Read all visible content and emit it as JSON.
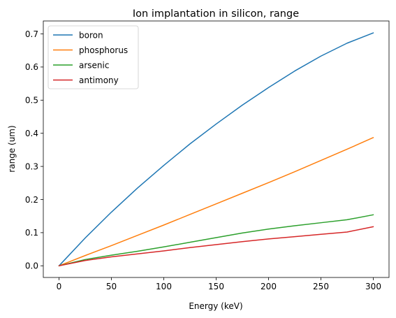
{
  "chart_data": {
    "type": "line",
    "title": "Ion implantation in silicon, range",
    "xlabel": "Energy (keV)",
    "ylabel": "range (um)",
    "xlim": [
      -15,
      315
    ],
    "ylim": [
      -0.0352,
      0.739
    ],
    "xticks": [
      0,
      50,
      100,
      150,
      200,
      250,
      300
    ],
    "xtick_labels": [
      "0",
      "50",
      "100",
      "150",
      "200",
      "250",
      "300"
    ],
    "yticks": [
      0.0,
      0.1,
      0.2,
      0.3,
      0.4,
      0.5,
      0.6,
      0.7
    ],
    "ytick_labels": [
      "0.0",
      "0.1",
      "0.2",
      "0.3",
      "0.4",
      "0.5",
      "0.6",
      "0.7"
    ],
    "grid": false,
    "legend_position": "top-left",
    "x": [
      0,
      25,
      50,
      75,
      100,
      125,
      150,
      175,
      200,
      225,
      250,
      275,
      300
    ],
    "series": [
      {
        "name": "boron",
        "color": "#1f77b4",
        "values": [
          0.0,
          0.084,
          0.162,
          0.235,
          0.303,
          0.368,
          0.428,
          0.485,
          0.538,
          0.588,
          0.633,
          0.672,
          0.703
        ]
      },
      {
        "name": "phosphorus",
        "color": "#ff7f0e",
        "values": [
          0.0,
          0.031,
          0.061,
          0.092,
          0.123,
          0.155,
          0.187,
          0.219,
          0.251,
          0.284,
          0.318,
          0.352,
          0.387
        ]
      },
      {
        "name": "arsenic",
        "color": "#2ca02c",
        "values": [
          0.0,
          0.019,
          0.032,
          0.044,
          0.057,
          0.071,
          0.085,
          0.099,
          0.111,
          0.121,
          0.13,
          0.139,
          0.154
        ]
      },
      {
        "name": "antimony",
        "color": "#d62728",
        "values": [
          0.0,
          0.016,
          0.027,
          0.036,
          0.045,
          0.055,
          0.064,
          0.073,
          0.081,
          0.088,
          0.095,
          0.102,
          0.118
        ]
      }
    ]
  }
}
